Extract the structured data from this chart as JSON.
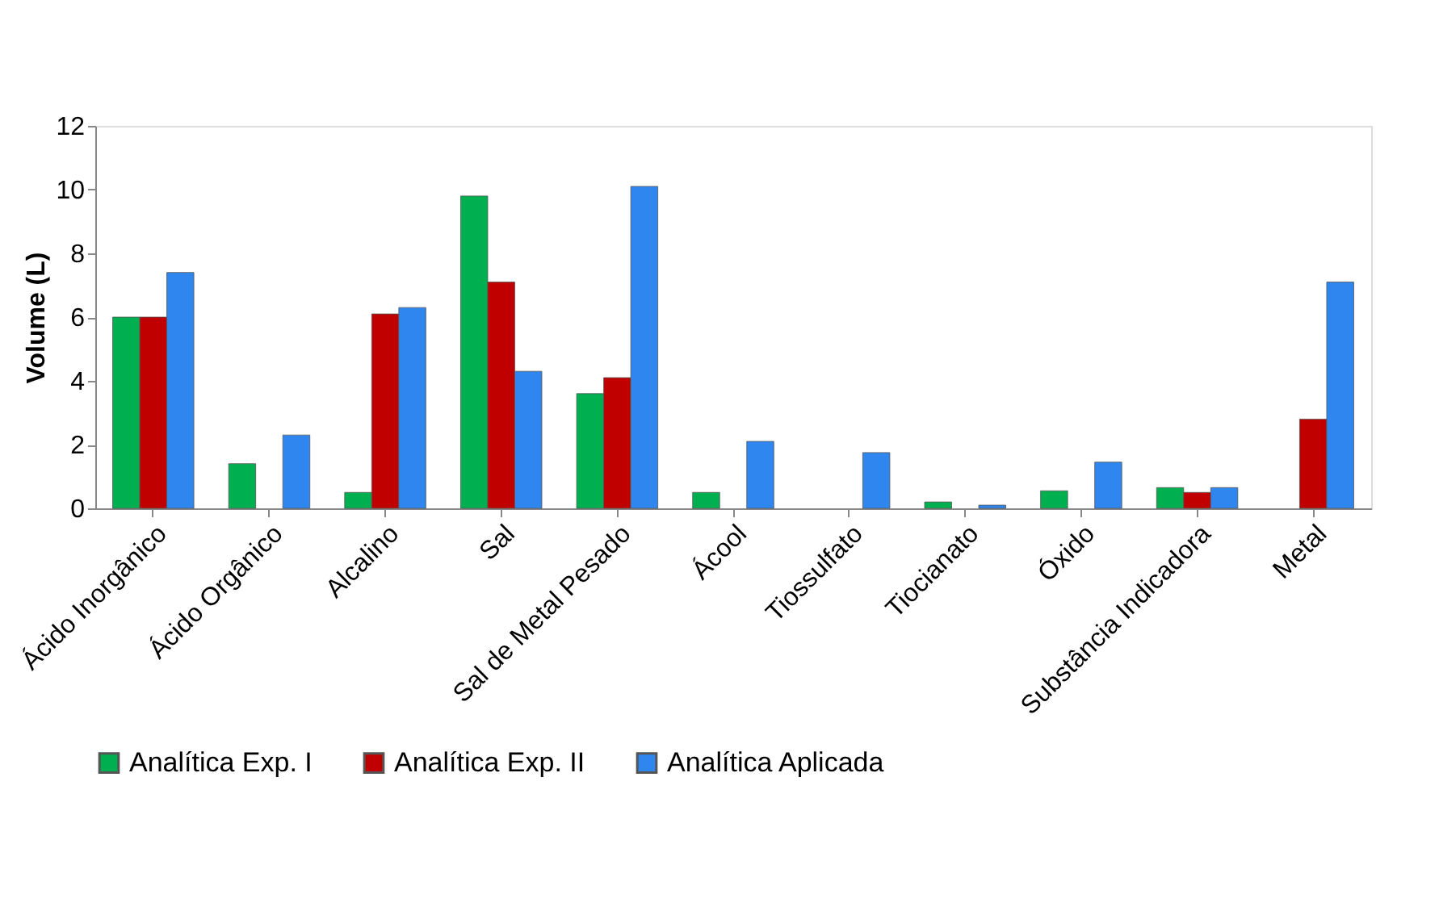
{
  "chart_data": {
    "type": "bar",
    "ylabel": "Volume (L)",
    "categories": [
      "Ácido Inorgânico",
      "Ácido Orgânico",
      "Alcalino",
      "Sal",
      "Sal de Metal Pesado",
      "Ácool",
      "Tiossulfato",
      "Tiocianato",
      "Óxido",
      "Substância Indicadora",
      "Metal"
    ],
    "series": [
      {
        "name": "Analítica Exp. I",
        "color": "#00b050",
        "values": [
          6,
          1.4,
          0.5,
          9.8,
          3.6,
          0.5,
          null,
          0.2,
          0.55,
          0.65,
          null
        ]
      },
      {
        "name": "Analítica Exp. II",
        "color": "#c00000",
        "values": [
          6,
          null,
          6.1,
          7.1,
          4.1,
          null,
          null,
          null,
          null,
          0.5,
          2.8
        ]
      },
      {
        "name": "Analítica Aplicada",
        "color": "#2f86ef",
        "values": [
          7.4,
          2.3,
          6.3,
          4.3,
          10.1,
          2.1,
          1.75,
          0.1,
          1.45,
          0.65,
          7.1
        ]
      }
    ],
    "ylim": [
      0,
      12
    ],
    "yticks": [
      0,
      2,
      4,
      6,
      8,
      10,
      12
    ],
    "grid": false,
    "legend": "bottom"
  }
}
